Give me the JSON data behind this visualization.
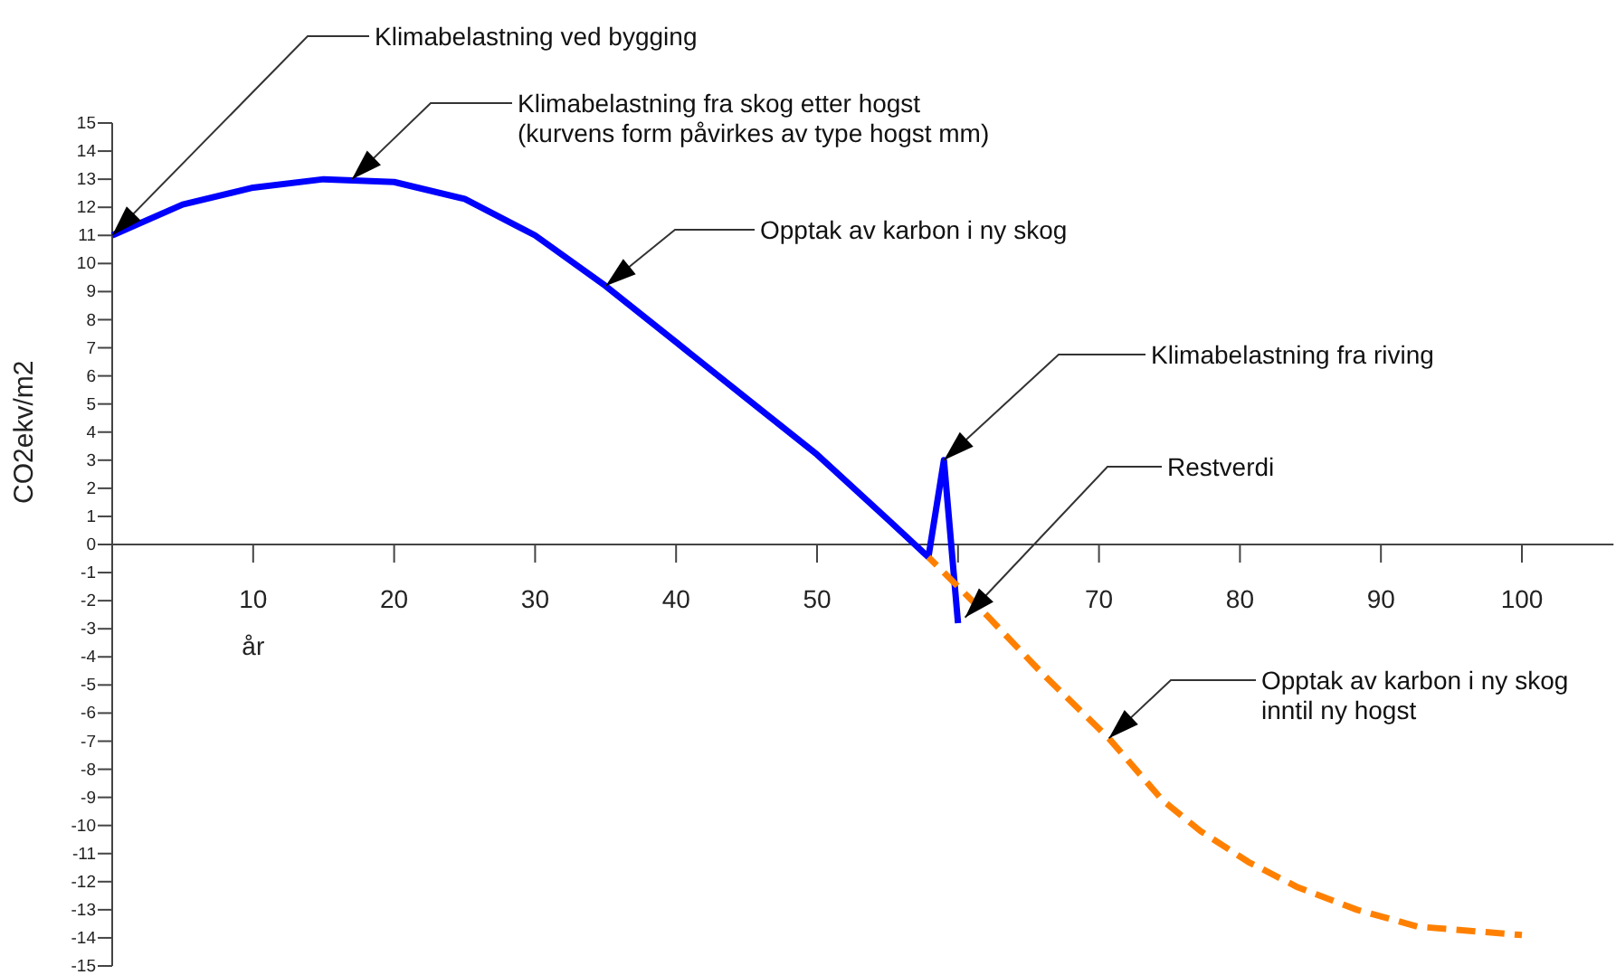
{
  "chart_data": {
    "type": "line",
    "xlabel": "år",
    "ylabel": "CO2ekv/m2",
    "xlim": [
      0,
      106.5
    ],
    "ylim": [
      -15,
      15
    ],
    "xticks": [
      10,
      20,
      30,
      40,
      50,
      {
        "value": 60,
        "label": null
      },
      70,
      80,
      90,
      100
    ],
    "yticks": [
      -15,
      -14,
      -13,
      -12,
      -11,
      -10,
      -9,
      -8,
      -7,
      -6,
      -5,
      -4,
      -3,
      -2,
      -1,
      0,
      1,
      2,
      3,
      4,
      5,
      6,
      7,
      8,
      9,
      10,
      11,
      12,
      13,
      14,
      15
    ],
    "grid": false,
    "legend": false,
    "marker": "none",
    "series": [
      {
        "color": "#0000ff",
        "line_style": "solid",
        "x": [
          0,
          5,
          10,
          15,
          20,
          25,
          30,
          35,
          40,
          45,
          50,
          55,
          57.9,
          59,
          60
        ],
        "values": [
          11,
          12.1,
          12.7,
          13,
          12.9,
          12.3,
          11,
          9.2,
          7.2,
          5.2,
          3.2,
          0.9,
          -0.45,
          3,
          -2.8
        ]
      },
      {
        "color": "#ff8000",
        "line_style": "dashed",
        "x": [
          57.9,
          62,
          66,
          70.7,
          74.5,
          77.2,
          80.6,
          84.1,
          88.3,
          92.6,
          100
        ],
        "values": [
          -0.45,
          -2.5,
          -4.6,
          -6.9,
          -9.1,
          -10.2,
          -11.3,
          -12.2,
          -13,
          -13.6,
          -13.9
        ]
      }
    ],
    "annotations": [
      {
        "text": "Klimabelastning ved bygging",
        "x": 0,
        "y": 11
      },
      {
        "text": "Klimabelastning fra skog etter hogst\n(kurvens form påvirkes av type hogst mm)",
        "x": 17,
        "y": 13
      },
      {
        "text": "Opptak av karbon i ny skog",
        "x": 35,
        "y": 9.2
      },
      {
        "text": "Klimabelastning fra riving",
        "x": 59,
        "y": 3
      },
      {
        "text": "Restverdi",
        "x": 60.5,
        "y": -2.6
      },
      {
        "text": "Opptak av karbon i ny skog\ninntil ny hogst",
        "x": 70.7,
        "y": -6.9
      }
    ]
  }
}
